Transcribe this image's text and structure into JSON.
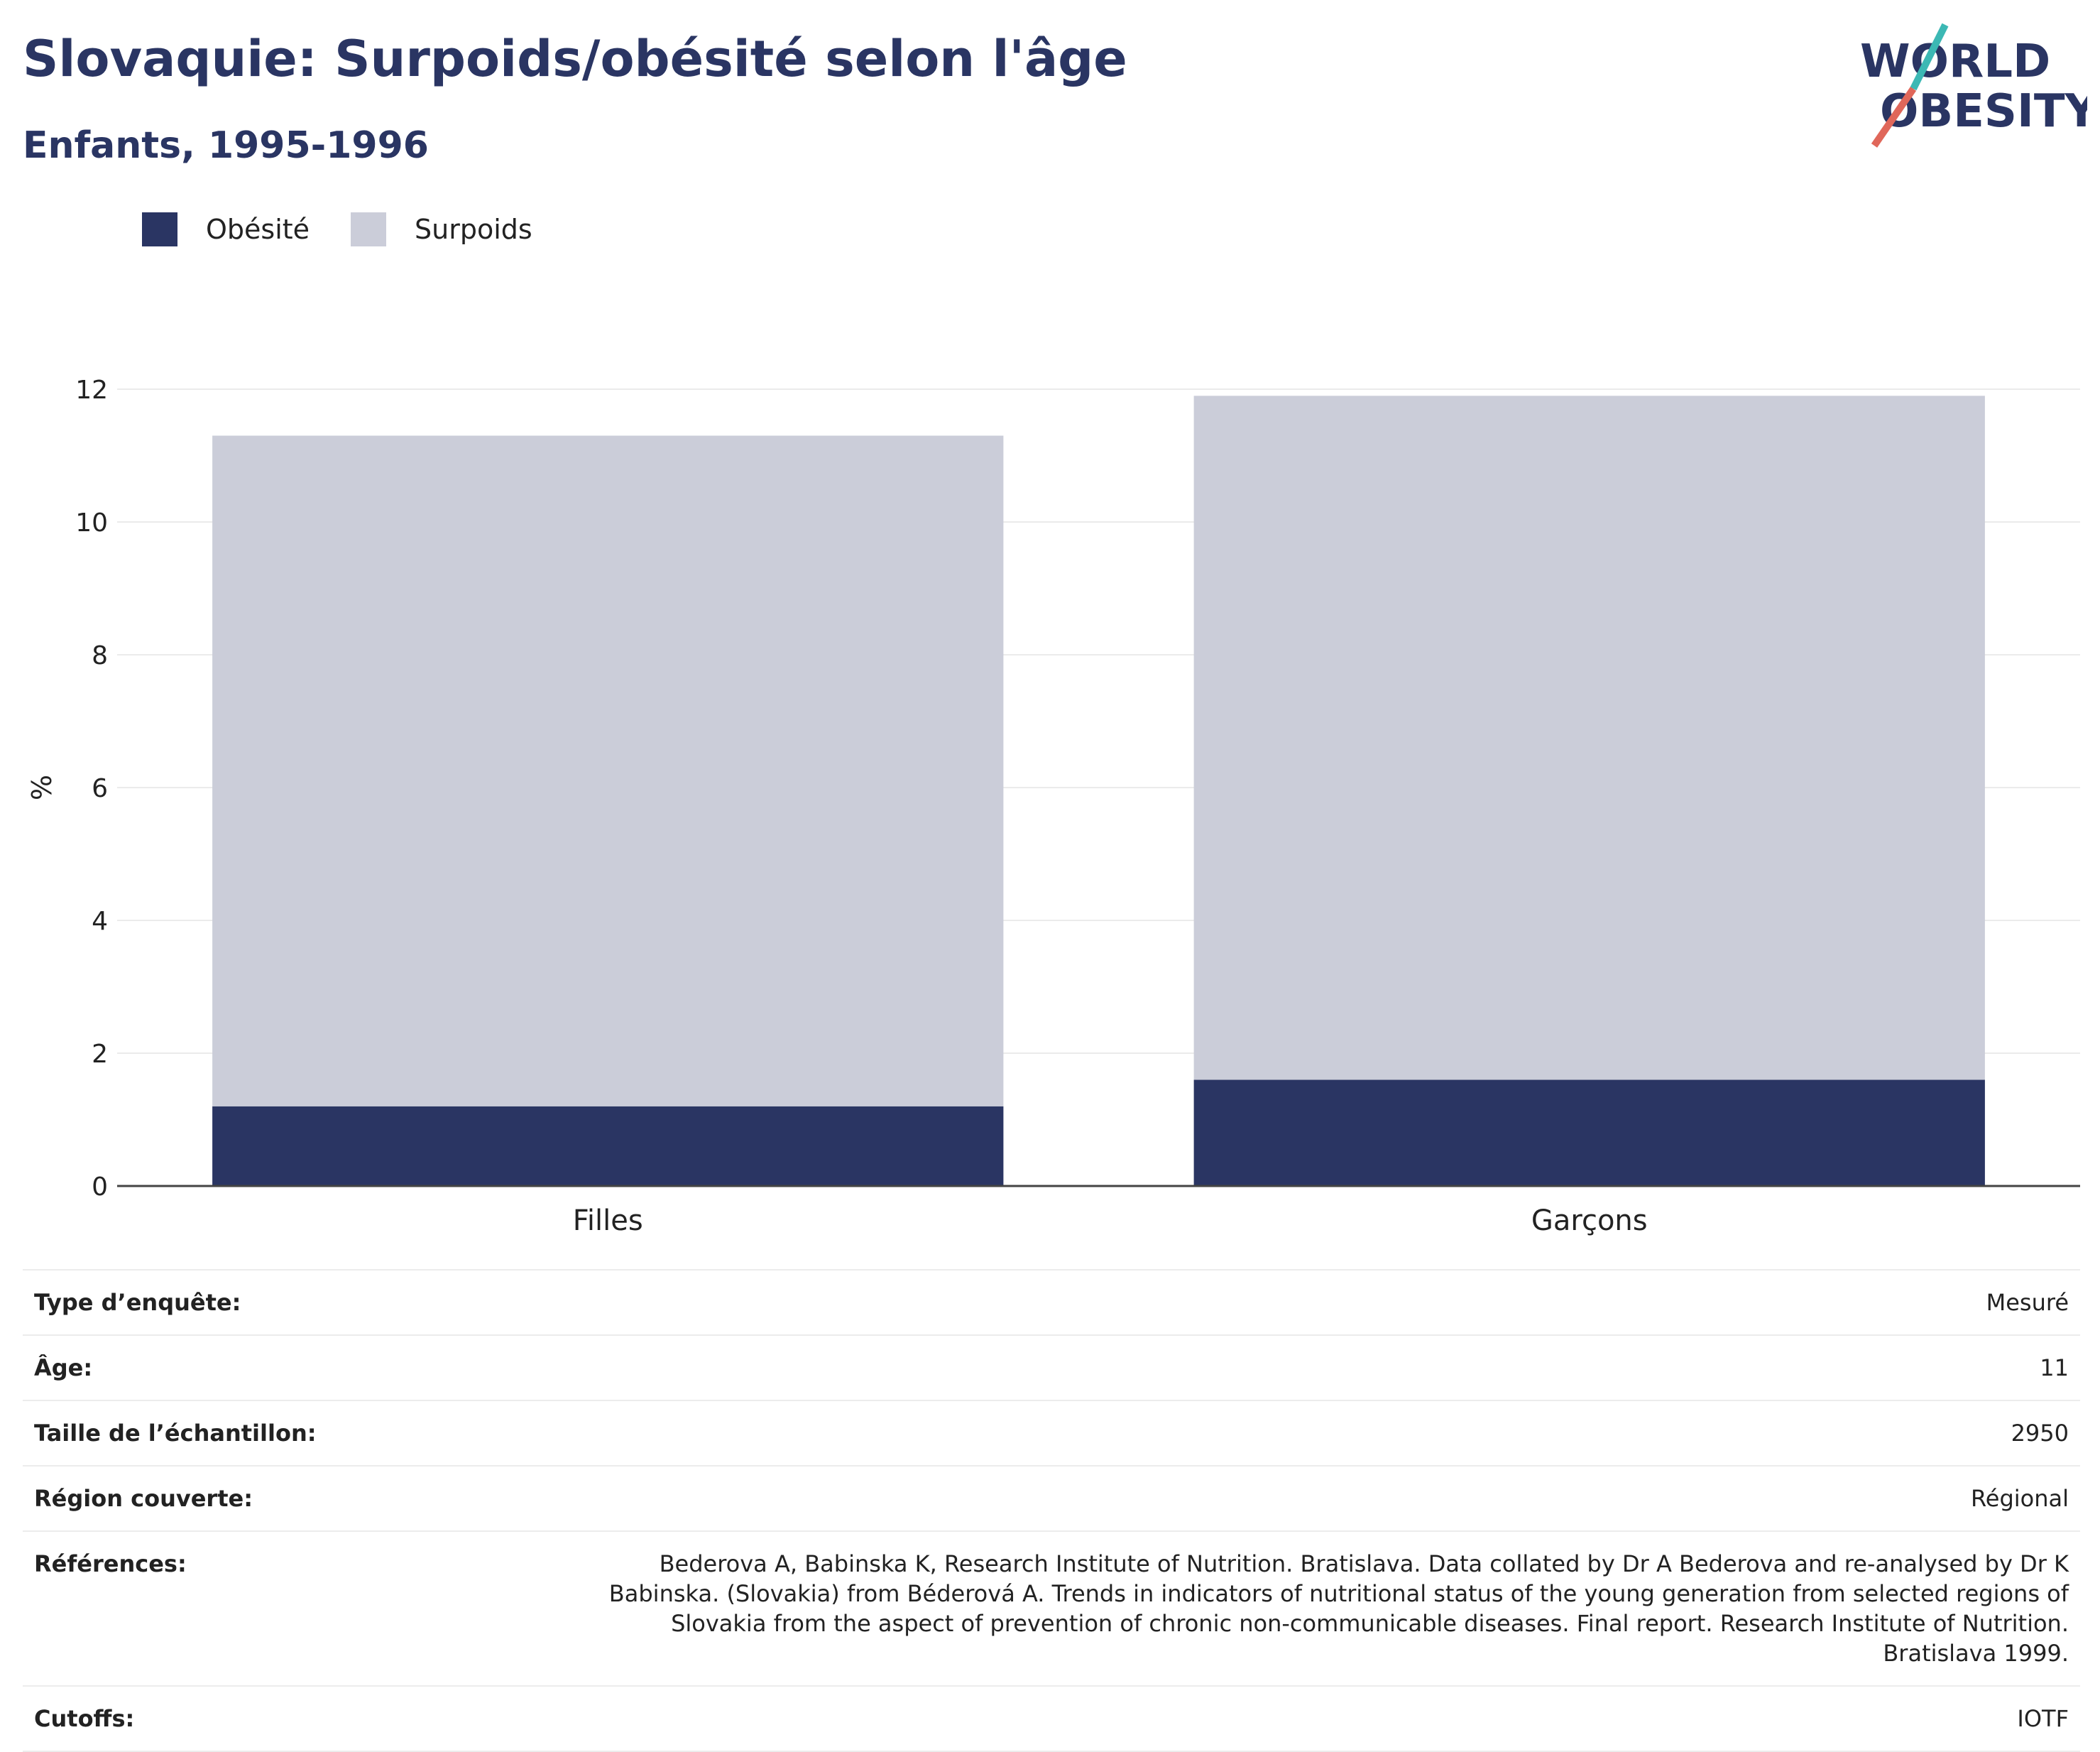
{
  "header": {
    "title": "Slovaquie: Surpoids/obésité selon l'âge",
    "subtitle": "Enfants, 1995-1996"
  },
  "logo": {
    "line1": "WORLD",
    "line2": "OBESITY",
    "accent_colors": [
      "#3cb8b4",
      "#e0675a"
    ],
    "text_color": "#2a3563"
  },
  "legend": {
    "items": [
      {
        "label": "Obésité",
        "color": "#2a3563"
      },
      {
        "label": "Surpoids",
        "color": "#cbcdd9"
      }
    ]
  },
  "chart_data": {
    "type": "bar",
    "stacked": true,
    "categories": [
      "Filles",
      "Garçons"
    ],
    "series": [
      {
        "name": "Obésité",
        "color": "#2a3563",
        "values": [
          1.2,
          1.6
        ]
      },
      {
        "name": "Surpoids",
        "color": "#cbcdd9",
        "values": [
          10.1,
          10.3
        ]
      }
    ],
    "ylabel": "%",
    "ylim": [
      0,
      12
    ],
    "yticks": [
      0,
      2,
      4,
      6,
      8,
      10,
      12
    ],
    "grid": true,
    "legend_position": "top-left"
  },
  "meta": {
    "rows": [
      {
        "label": "Type d’enquête:",
        "value": "Mesuré"
      },
      {
        "label": "Âge:",
        "value": "11"
      },
      {
        "label": "Taille de l’échantillon:",
        "value": "2950"
      },
      {
        "label": "Région couverte:",
        "value": "Régional"
      },
      {
        "label": "Références:",
        "value": "Bederova A, Babinska K, Research Institute of Nutrition. Bratislava. Data collated by Dr A Bederova and re-analysed by Dr K Babinska. (Slovakia) from Béderová A. Trends in indicators of nutritional status of the young generation from selected regions of Slovakia from the aspect of prevention of chronic non-communicable diseases. Final report. Research Institute of Nutrition. Bratislava 1999."
      },
      {
        "label": "Cutoffs:",
        "value": "IOTF"
      }
    ]
  }
}
